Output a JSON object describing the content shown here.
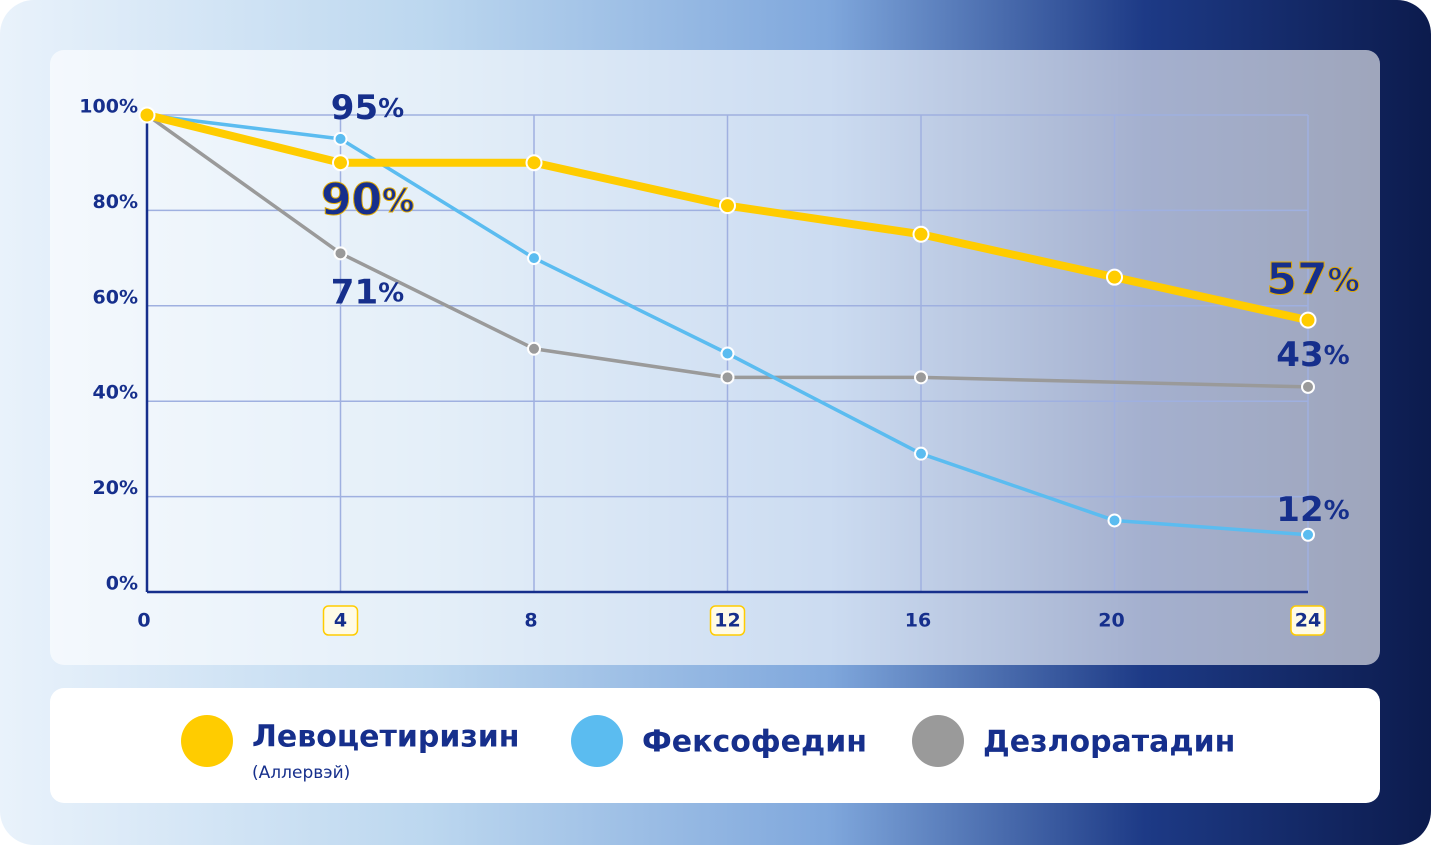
{
  "chart_data": {
    "type": "line",
    "x": [
      0,
      4,
      8,
      12,
      16,
      20,
      24
    ],
    "xlim": [
      0,
      24
    ],
    "xticks": [
      0,
      4,
      8,
      12,
      16,
      20,
      24
    ],
    "highlighted_xticks": [
      4,
      12,
      24
    ],
    "ylim": [
      0,
      100
    ],
    "yticks": [
      {
        "value": 0,
        "label": "0%"
      },
      {
        "value": 20,
        "label": "20%"
      },
      {
        "value": 40,
        "label": "40%"
      },
      {
        "value": 60,
        "label": "60%"
      },
      {
        "value": 80,
        "label": "80%"
      },
      {
        "value": 100,
        "label": "100%"
      }
    ],
    "grid": true,
    "series": [
      {
        "name": "Левоцетиризин",
        "subtitle": "(Аллервэй)",
        "color": "#ffcc00",
        "values": [
          100,
          90,
          90,
          81,
          75,
          66,
          57
        ],
        "value_labels": [
          null,
          "90%",
          null,
          null,
          null,
          null,
          "57%"
        ]
      },
      {
        "name": "Фексофедин",
        "color": "#5bbcf0",
        "values": [
          100,
          95,
          70,
          50,
          29,
          15,
          12
        ],
        "value_labels": [
          null,
          "95%",
          null,
          null,
          null,
          null,
          "12%"
        ]
      },
      {
        "name": "Дезлоратадин",
        "color": "#9a9a9a",
        "x": [
          0,
          4,
          8,
          12,
          16,
          24
        ],
        "values": [
          100,
          71,
          51,
          45,
          45,
          43
        ],
        "value_labels": [
          null,
          "71%",
          null,
          null,
          null,
          "43%"
        ]
      }
    ]
  }
}
